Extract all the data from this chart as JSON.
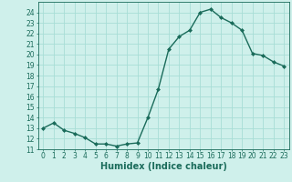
{
  "x": [
    0,
    1,
    2,
    3,
    4,
    5,
    6,
    7,
    8,
    9,
    10,
    11,
    12,
    13,
    14,
    15,
    16,
    17,
    18,
    19,
    20,
    21,
    22,
    23
  ],
  "y": [
    13.0,
    13.5,
    12.8,
    12.5,
    12.1,
    11.5,
    11.5,
    11.3,
    11.5,
    11.6,
    14.0,
    16.7,
    20.5,
    21.7,
    22.3,
    24.0,
    24.3,
    23.5,
    23.0,
    22.3,
    20.1,
    19.9,
    19.3,
    18.9
  ],
  "line_color": "#1a6b5a",
  "marker": "D",
  "marker_size": 2.0,
  "bg_color": "#cff0eb",
  "grid_color": "#a8ddd6",
  "xlabel": "Humidex (Indice chaleur)",
  "ylim": [
    11,
    25
  ],
  "xlim": [
    -0.5,
    23.5
  ],
  "yticks": [
    11,
    12,
    13,
    14,
    15,
    16,
    17,
    18,
    19,
    20,
    21,
    22,
    23,
    24
  ],
  "xticks": [
    0,
    1,
    2,
    3,
    4,
    5,
    6,
    7,
    8,
    9,
    10,
    11,
    12,
    13,
    14,
    15,
    16,
    17,
    18,
    19,
    20,
    21,
    22,
    23
  ],
  "xlabel_fontsize": 7,
  "tick_fontsize": 5.5,
  "line_width": 1.0
}
